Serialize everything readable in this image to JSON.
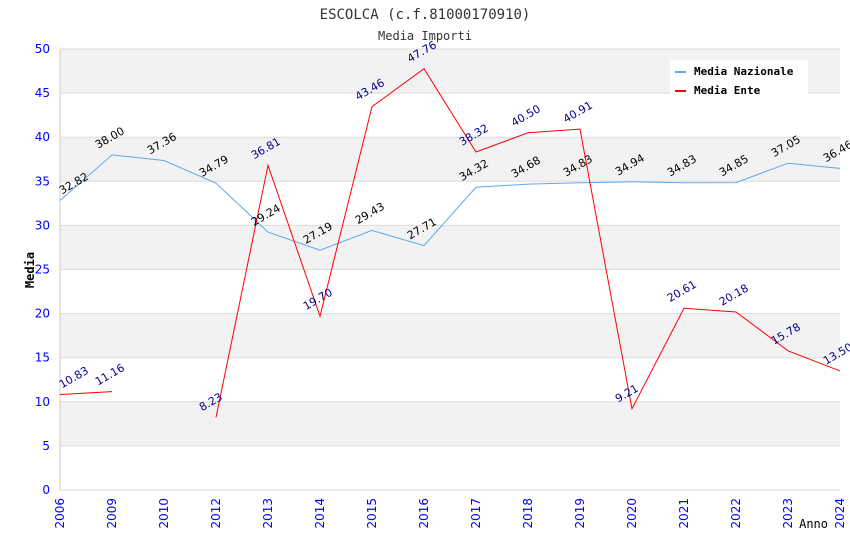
{
  "chart_data": {
    "type": "line",
    "title": "ESCOLCA (c.f.81000170910)",
    "subtitle": "Media Importi",
    "xlabel": "Anno",
    "ylabel": "Media",
    "ylim": [
      0,
      50
    ],
    "yticks": [
      0,
      5,
      10,
      15,
      20,
      25,
      30,
      35,
      40,
      45,
      50
    ],
    "categories": [
      "2006",
      "2009",
      "2010",
      "2012",
      "2013",
      "2014",
      "2015",
      "2016",
      "2017",
      "2018",
      "2019",
      "2020",
      "2021",
      "2022",
      "2023",
      "2024"
    ],
    "legend_position": "top-right",
    "series": [
      {
        "name": "Media Nazionale",
        "color": "#5ca8f0",
        "label_color": "#000000",
        "values": [
          32.82,
          38.0,
          37.36,
          34.79,
          29.24,
          27.19,
          29.43,
          27.71,
          34.32,
          34.68,
          34.83,
          34.94,
          34.83,
          34.85,
          37.05,
          36.46
        ]
      },
      {
        "name": "Media Ente",
        "color": "#ff0000",
        "label_color": "#00008b",
        "values": [
          10.83,
          11.16,
          null,
          8.23,
          36.81,
          19.7,
          43.46,
          47.76,
          38.32,
          40.5,
          40.91,
          9.21,
          20.61,
          20.18,
          15.78,
          13.5
        ]
      }
    ]
  }
}
